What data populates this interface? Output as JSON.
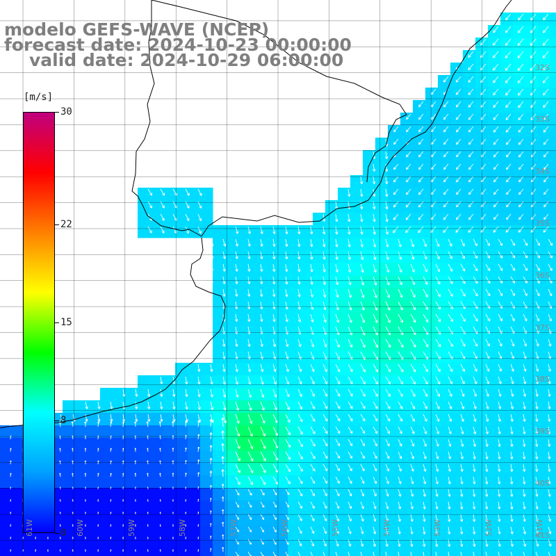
{
  "header": {
    "model_line": "modelo GEFS-WAVE (NCEP)",
    "forecast_line": "forecast date: 2024-10-23 00:00:00",
    "valid_line": "valid date: 2024-10-29 06:00:00"
  },
  "colorbar": {
    "unit_label": "[m/s]",
    "ticks": [
      "30",
      "22",
      "15",
      "8",
      "0"
    ],
    "tick_values": [
      30,
      22,
      15,
      8,
      0
    ],
    "min": 0,
    "max": 30,
    "colors": [
      "#0000ff",
      "#00a0ff",
      "#00ffff",
      "#00ff00",
      "#ffff00",
      "#ff8000",
      "#ff0000",
      "#c0007f"
    ]
  },
  "axes": {
    "lon_labels": [
      "61W",
      "60W",
      "59W",
      "58W",
      "57W",
      "56W",
      "55W",
      "54W",
      "53W",
      "52W",
      "51W"
    ],
    "lat_labels": [
      "32S",
      "33S",
      "34S",
      "35S",
      "36S",
      "37S",
      "38S",
      "39S",
      "40S",
      "41S"
    ],
    "lon_range": [
      -61.0,
      -50.5
    ],
    "lat_range": [
      -41.3,
      -30.4
    ]
  },
  "colors": {
    "coast": "#000000",
    "grid": "#000000",
    "arrow": "#ffffff",
    "title": "#7f7f7f"
  }
}
